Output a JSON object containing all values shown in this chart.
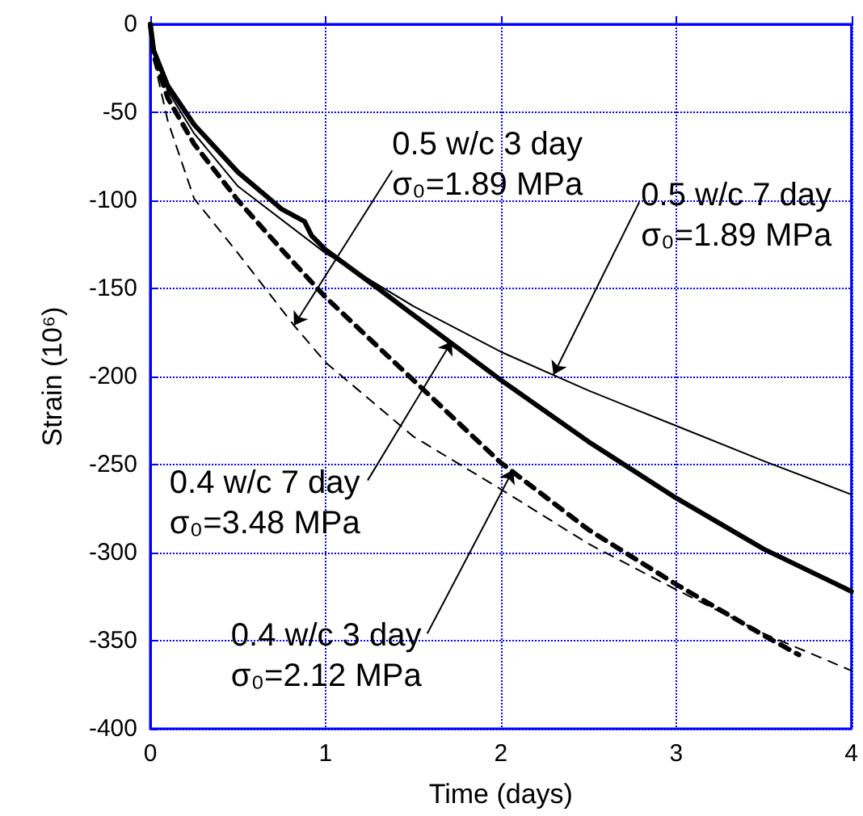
{
  "chart_data": {
    "type": "line",
    "xlabel": "Time (days)",
    "ylabel": "Strain (10⁶)",
    "xlim": [
      0,
      4
    ],
    "xticks": [
      0,
      1,
      2,
      3,
      4
    ],
    "ylim": [
      -400,
      0
    ],
    "yticks": [
      -400,
      -350,
      -300,
      -250,
      -200,
      -150,
      -100,
      -50,
      0
    ],
    "grid": true,
    "marker": "none",
    "series": [
      {
        "color": "#000000",
        "line_style": "solid",
        "x": [
          0,
          0.02,
          0.1,
          0.25,
          0.5,
          1,
          1.5,
          2,
          2.5,
          3,
          3.5,
          4
        ],
        "values": [
          0,
          -15,
          -38,
          -62,
          -92,
          -130,
          -160,
          -186,
          -208,
          -228,
          -248,
          -267
        ]
      },
      {
        "color": "#000000",
        "line_style": "dashed",
        "x": [
          0,
          0.02,
          0.1,
          0.25,
          0.5,
          0.82,
          1,
          1.5,
          2,
          2.5,
          3,
          3.5,
          4
        ],
        "values": [
          0,
          -20,
          -55,
          -99,
          -130,
          -171,
          -192,
          -234,
          -264,
          -295,
          -321,
          -346,
          -367
        ]
      },
      {
        "color": "#000000",
        "line_style": "solid",
        "x": [
          0,
          0.02,
          0.1,
          0.25,
          0.5,
          0.75,
          0.88,
          0.92,
          1,
          1.3,
          1.5,
          2,
          2.5,
          3,
          3.5,
          4
        ],
        "values": [
          0,
          -15,
          -35,
          -57,
          -84,
          -105,
          -112,
          -120,
          -128,
          -150,
          -165,
          -202,
          -237,
          -269,
          -298,
          -322
        ]
      },
      {
        "color": "#000000",
        "line_style": "dashed",
        "x": [
          0,
          0.02,
          0.1,
          0.25,
          0.5,
          0.75,
          1,
          1.5,
          2,
          2.5,
          3,
          3.5,
          3.7
        ],
        "values": [
          0,
          -18,
          -42,
          -68,
          -100,
          -128,
          -155,
          -202,
          -249,
          -287,
          -318,
          -347,
          -358
        ]
      }
    ],
    "annotations": [
      {
        "text": "0.5 w/c 3 day\nσ₀=1.89 MPa",
        "x": 0.82,
        "y": -171
      },
      {
        "text": "0.5 w/c 7 day\nσ₀=1.89 MPa",
        "x": 2.3,
        "y": -199
      },
      {
        "text": "0.4 w/c 7 day\nσ₀=3.48 MPa",
        "x": 1.72,
        "y": -180
      },
      {
        "text": "0.4 w/c 3 day\nσ₀=2.12 MPa",
        "x": 2.07,
        "y": -253
      }
    ]
  }
}
